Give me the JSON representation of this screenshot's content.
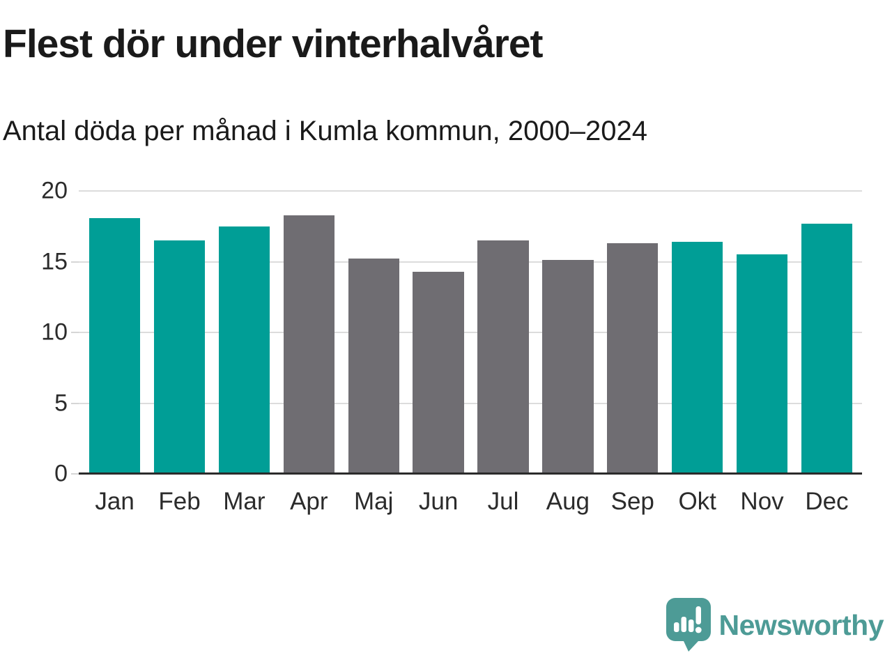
{
  "header": {
    "title": "Flest dör under vinterhalvåret",
    "subtitle": "Antal döda per månad i Kumla kommun, 2000–2024"
  },
  "chart_data": {
    "type": "bar",
    "title": "Flest dör under vinterhalvåret",
    "subtitle": "Antal döda per månad i Kumla kommun, 2000–2024",
    "categories": [
      "Jan",
      "Feb",
      "Mar",
      "Apr",
      "Maj",
      "Jun",
      "Jul",
      "Aug",
      "Sep",
      "Okt",
      "Nov",
      "Dec"
    ],
    "values": [
      18.1,
      16.5,
      17.5,
      18.3,
      15.2,
      14.3,
      16.5,
      15.1,
      16.3,
      16.4,
      15.5,
      17.7
    ],
    "bar_color_keys": [
      "winter",
      "winter",
      "winter",
      "summer",
      "summer",
      "summer",
      "summer",
      "summer",
      "summer",
      "winter",
      "winter",
      "winter"
    ],
    "colors": {
      "winter": "#009e96",
      "summer": "#6f6d72"
    },
    "xlabel": "",
    "ylabel": "",
    "ylim": [
      0,
      20
    ],
    "yticks": [
      0,
      5,
      10,
      15,
      20
    ],
    "grid": true,
    "legend": "none"
  },
  "footer": {
    "brand": "Newsworthy",
    "brand_color": "#4d9b96",
    "logo_icon": "newsworthy-speech-bubble-chart-icon"
  }
}
